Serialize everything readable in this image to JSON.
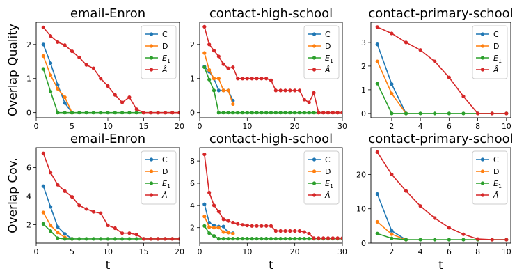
{
  "colors": {
    "C": "#1f77b4",
    "D": "#ff7f0e",
    "E1": "#2ca02c",
    "A": "#d62728"
  },
  "chart_data": [
    {
      "type": "line",
      "title": "email-Enron",
      "ylabel": "Overlap Quality",
      "xlabel": "",
      "xlim": [
        0,
        20
      ],
      "ylim": [
        -0.15,
        2.65
      ],
      "xticks": [
        "0",
        "5",
        "10",
        "15",
        "20"
      ],
      "xtick_values": [
        0,
        5,
        10,
        15,
        20
      ],
      "yticks": [
        "0",
        "1",
        "2"
      ],
      "ytick_values": [
        0,
        1,
        2
      ],
      "legend": "top-right",
      "series": [
        {
          "name": "C",
          "x": [
            1,
            2,
            3,
            4,
            5
          ],
          "y": [
            2.0,
            1.45,
            0.82,
            0.28,
            0.0
          ]
        },
        {
          "name": "D",
          "x": [
            1,
            2,
            3,
            4,
            5
          ],
          "y": [
            1.66,
            1.1,
            0.7,
            0.45,
            0.0
          ]
        },
        {
          "name": "E1",
          "x": [
            1,
            2,
            3,
            4,
            5,
            6,
            7,
            8,
            9,
            10,
            11,
            12,
            13,
            14,
            15,
            16,
            17,
            18,
            19,
            20
          ],
          "y": [
            1.28,
            0.62,
            0,
            0,
            0,
            0,
            0,
            0,
            0,
            0,
            0,
            0,
            0,
            0,
            0,
            0,
            0,
            0,
            0,
            0
          ]
        },
        {
          "name": "Â",
          "x": [
            1,
            2,
            3,
            4,
            5,
            6,
            7,
            8,
            9,
            10,
            11,
            12,
            13,
            14,
            15,
            16,
            17,
            18,
            19,
            20
          ],
          "y": [
            2.5,
            2.25,
            2.07,
            1.98,
            1.8,
            1.62,
            1.4,
            1.3,
            1.0,
            0.78,
            0.52,
            0.3,
            0.45,
            0.1,
            0,
            0,
            0,
            0,
            0,
            0
          ]
        }
      ]
    },
    {
      "type": "line",
      "title": "contact-high-school",
      "ylabel": "",
      "xlabel": "",
      "xlim": [
        0,
        30
      ],
      "ylim": [
        -0.15,
        2.65
      ],
      "xticks": [
        "0",
        "10",
        "20",
        "30"
      ],
      "xtick_values": [
        0,
        10,
        20,
        30
      ],
      "yticks": [
        "0",
        "1",
        "2"
      ],
      "ytick_values": [
        0,
        1,
        2
      ],
      "legend": "top-right",
      "series": [
        {
          "name": "C",
          "x": [
            1,
            2,
            3,
            4,
            5,
            6,
            7
          ],
          "y": [
            1.35,
            1.2,
            1.0,
            0.65,
            0.65,
            0.65,
            0.35
          ]
        },
        {
          "name": "D",
          "x": [
            1,
            2,
            3,
            4,
            5,
            6,
            7
          ],
          "y": [
            1.75,
            1.25,
            1.0,
            1.0,
            0.65,
            0.65,
            0.25
          ]
        },
        {
          "name": "E1",
          "x": [
            1,
            2,
            3,
            4,
            5,
            6,
            7,
            8,
            9,
            10,
            11,
            12,
            13,
            14,
            15,
            16,
            17,
            18,
            19,
            20,
            21,
            22,
            23,
            24,
            25,
            26,
            27,
            28,
            29,
            30
          ],
          "y": [
            1.33,
            0.97,
            0.65,
            0,
            0,
            0,
            0,
            0,
            0,
            0,
            0,
            0,
            0,
            0,
            0,
            0,
            0,
            0,
            0,
            0,
            0,
            0,
            0,
            0,
            0,
            0,
            0,
            0,
            0,
            0
          ]
        },
        {
          "name": "Â",
          "x": [
            1,
            2,
            3,
            4,
            5,
            6,
            7,
            8,
            9,
            10,
            11,
            12,
            13,
            14,
            15,
            16,
            17,
            18,
            19,
            20,
            21,
            22,
            23,
            24,
            25,
            26,
            27,
            28,
            29,
            30
          ],
          "y": [
            2.52,
            2.0,
            1.82,
            1.65,
            1.42,
            1.3,
            1.33,
            1.0,
            1.0,
            1.0,
            1.0,
            1.0,
            1.0,
            1.0,
            0.95,
            0.65,
            0.65,
            0.65,
            0.65,
            0.65,
            0.65,
            0.38,
            0.3,
            0.58,
            0,
            0,
            0,
            0,
            0,
            0
          ]
        }
      ]
    },
    {
      "type": "line",
      "title": "contact-primary-school",
      "ylabel": "",
      "xlabel": "",
      "xlim": [
        0.55,
        10.3
      ],
      "ylim": [
        -0.18,
        3.85
      ],
      "xticks": [
        "2",
        "4",
        "6",
        "8",
        "10"
      ],
      "xtick_values": [
        2,
        4,
        6,
        8,
        10
      ],
      "yticks": [
        "0",
        "1",
        "2",
        "3"
      ],
      "ytick_values": [
        0,
        1,
        2,
        3
      ],
      "legend": "top-right",
      "series": [
        {
          "name": "C",
          "x": [
            1,
            2,
            3
          ],
          "y": [
            2.92,
            1.24,
            0.0
          ]
        },
        {
          "name": "D",
          "x": [
            1,
            2,
            3
          ],
          "y": [
            2.2,
            0.84,
            0.0
          ]
        },
        {
          "name": "E1",
          "x": [
            1,
            2,
            3,
            4,
            5,
            6,
            7,
            8,
            9,
            10
          ],
          "y": [
            1.26,
            0,
            0,
            0,
            0,
            0,
            0,
            0,
            0,
            0
          ]
        },
        {
          "name": "Â",
          "x": [
            1,
            2,
            3,
            4,
            5,
            6,
            7,
            8,
            9,
            10
          ],
          "y": [
            3.65,
            3.38,
            3.0,
            2.68,
            2.2,
            1.52,
            0.72,
            0,
            0,
            0
          ]
        }
      ]
    },
    {
      "type": "line",
      "title": "email-Enron",
      "ylabel": "Overlap Cov.",
      "xlabel": "t",
      "xlim": [
        0,
        20
      ],
      "ylim": [
        0.7,
        7.4
      ],
      "xticks": [
        "0",
        "5",
        "10",
        "15",
        "20"
      ],
      "xtick_values": [
        0,
        5,
        10,
        15,
        20
      ],
      "yticks": [
        "2",
        "4",
        "6"
      ],
      "ytick_values": [
        2,
        4,
        6
      ],
      "legend": "top-right",
      "series": [
        {
          "name": "C",
          "x": [
            1,
            2,
            3,
            4,
            5
          ],
          "y": [
            4.7,
            3.25,
            1.85,
            1.35,
            1.0
          ]
        },
        {
          "name": "D",
          "x": [
            1,
            2,
            3,
            4,
            5
          ],
          "y": [
            2.85,
            1.95,
            1.45,
            1.1,
            1.0
          ]
        },
        {
          "name": "E1",
          "x": [
            1,
            2,
            3,
            4,
            5,
            6,
            7,
            8,
            9,
            10,
            11,
            12,
            13,
            14,
            15,
            16,
            17,
            18,
            19,
            20
          ],
          "y": [
            2.05,
            1.55,
            1.05,
            1,
            1,
            1,
            1,
            1,
            1,
            1,
            1,
            1,
            1,
            1,
            1,
            1,
            1,
            1,
            1,
            1
          ]
        },
        {
          "name": "Â",
          "x": [
            1,
            2,
            3,
            4,
            5,
            6,
            7,
            8,
            9,
            10,
            11,
            12,
            13,
            14,
            15,
            16,
            17,
            18,
            19,
            20
          ],
          "y": [
            7.0,
            5.65,
            4.8,
            4.35,
            3.95,
            3.35,
            3.1,
            2.9,
            2.8,
            1.95,
            1.75,
            1.4,
            1.4,
            1.3,
            1.0,
            1.0,
            1.0,
            1.0,
            1.0,
            1.0
          ]
        }
      ]
    },
    {
      "type": "line",
      "title": "contact-high-school",
      "ylabel": "",
      "xlabel": "t",
      "xlim": [
        0,
        30
      ],
      "ylim": [
        0.6,
        9.2
      ],
      "xticks": [
        "0",
        "10",
        "20",
        "30"
      ],
      "xtick_values": [
        0,
        10,
        20,
        30
      ],
      "yticks": [
        "2",
        "4",
        "6",
        "8"
      ],
      "ytick_values": [
        2,
        4,
        6,
        8
      ],
      "legend": "top-right",
      "series": [
        {
          "name": "C",
          "x": [
            1,
            2,
            3,
            4,
            5,
            6,
            7
          ],
          "y": [
            4.1,
            2.45,
            2.2,
            2.1,
            2.1,
            1.55,
            1.5
          ]
        },
        {
          "name": "D",
          "x": [
            1,
            2,
            3,
            4,
            5,
            6,
            7
          ],
          "y": [
            3.0,
            2.05,
            2.0,
            2.0,
            1.6,
            1.55,
            1.45
          ]
        },
        {
          "name": "E1",
          "x": [
            1,
            2,
            3,
            4,
            5,
            6,
            7,
            8,
            9,
            10,
            11,
            12,
            13,
            14,
            15,
            16,
            17,
            18,
            19,
            20,
            21,
            22,
            23,
            24,
            25,
            26,
            27,
            28,
            29,
            30
          ],
          "y": [
            2.15,
            1.5,
            1.25,
            1,
            1,
            1,
            1,
            1,
            1,
            1,
            1,
            1,
            1,
            1,
            1,
            1,
            1,
            1,
            1,
            1,
            1,
            1,
            1,
            1,
            1,
            1,
            1,
            1,
            1,
            1
          ]
        },
        {
          "name": "Â",
          "x": [
            1,
            2,
            3,
            4,
            5,
            6,
            7,
            8,
            9,
            10,
            11,
            12,
            13,
            14,
            15,
            16,
            17,
            18,
            19,
            20,
            21,
            22,
            23,
            24,
            25,
            26,
            27,
            28,
            29,
            30
          ],
          "y": [
            8.6,
            5.15,
            4.0,
            3.45,
            2.75,
            2.6,
            2.45,
            2.35,
            2.25,
            2.2,
            2.15,
            2.15,
            2.15,
            2.15,
            2.15,
            1.7,
            1.7,
            1.7,
            1.7,
            1.7,
            1.7,
            1.6,
            1.45,
            1.05,
            1.05,
            1.05,
            1.05,
            1.05,
            1.05,
            1.05
          ]
        }
      ]
    },
    {
      "type": "line",
      "title": "contact-primary-school",
      "ylabel": "",
      "xlabel": "t",
      "xlim": [
        0.55,
        10.3
      ],
      "ylim": [
        0.0,
        27.8
      ],
      "xticks": [
        "2",
        "4",
        "6",
        "8",
        "10"
      ],
      "xtick_values": [
        2,
        4,
        6,
        8,
        10
      ],
      "yticks": [
        "0",
        "10",
        "20"
      ],
      "ytick_values": [
        0,
        10,
        20
      ],
      "legend": "top-right",
      "series": [
        {
          "name": "C",
          "x": [
            1,
            2,
            3
          ],
          "y": [
            14.3,
            3.6,
            1.0
          ]
        },
        {
          "name": "D",
          "x": [
            1,
            2,
            3
          ],
          "y": [
            6.2,
            2.6,
            1.0
          ]
        },
        {
          "name": "E1",
          "x": [
            1,
            2,
            3,
            4,
            5,
            6,
            7,
            8,
            9,
            10
          ],
          "y": [
            2.8,
            1.4,
            1,
            1,
            1,
            1,
            1,
            1,
            1,
            1
          ]
        },
        {
          "name": "Â",
          "x": [
            1,
            2,
            3,
            4,
            5,
            6,
            7,
            8,
            9,
            10
          ],
          "y": [
            26.5,
            20.0,
            15.2,
            10.8,
            7.3,
            4.5,
            2.6,
            1.2,
            1.0,
            1.0
          ]
        }
      ]
    }
  ]
}
